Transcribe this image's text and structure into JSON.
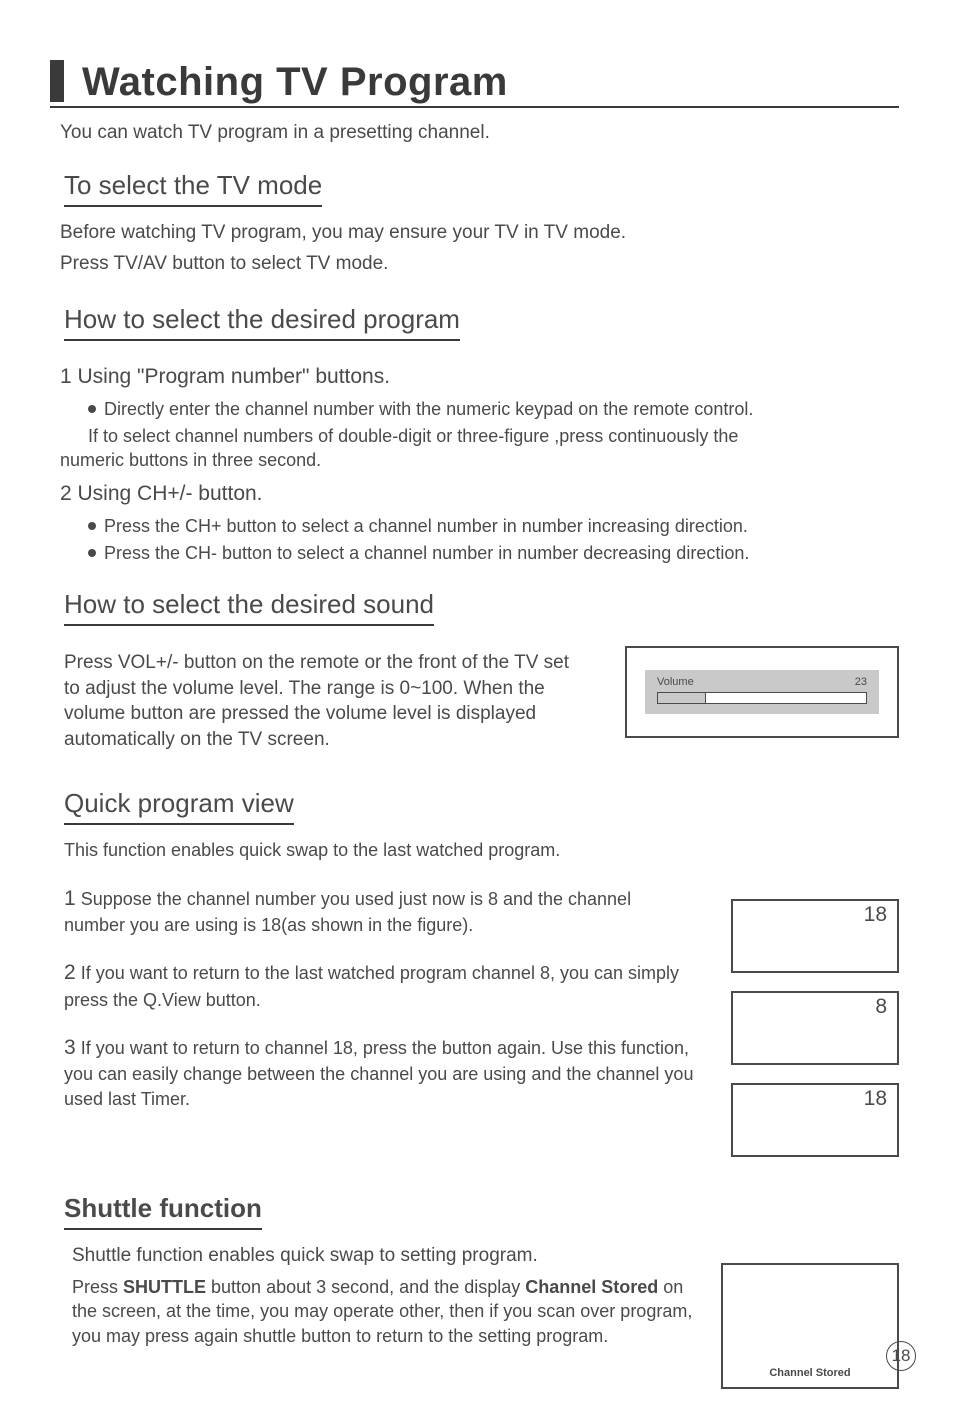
{
  "page": {
    "title": "Watching TV Program",
    "intro": "You can watch TV program in a  presetting channel.",
    "number": "18"
  },
  "mode": {
    "heading": "To select the TV mode",
    "p1": "Before watching TV program, you may ensure your TV in TV mode.",
    "p2": "Press TV/AV button to select TV mode."
  },
  "program": {
    "heading": "How to select the desired program",
    "step1_title": "1 Using \"Program number\" buttons.",
    "step1_b1": "Directly enter the channel number with the numeric keypad on the remote control.",
    "step1_note_a": "If to select channel numbers of double-digit or three-figure ,press continuously the",
    "step1_note_b": "numeric buttons in three second.",
    "step2_title": "2 Using CH+/- button.",
    "step2_b1": "Press the CH+ button to select a channel number in number increasing direction.",
    "step2_b2": "Press the CH- button to select a channel number in number decreasing direction."
  },
  "sound": {
    "heading": "How to select the desired sound",
    "body": "Press VOL+/- button on the remote or the front of the TV set to adjust the volume level. The range is 0~100. When the volume button are pressed the volume level is displayed automatically on the TV screen.",
    "fig": {
      "label": "Volume",
      "value": "23",
      "fill_percent": 23,
      "border_color": "#4a4a4a",
      "band_bg": "#c9c9c9",
      "bar_bg": "#ffffff"
    }
  },
  "quickview": {
    "heading": "Quick program view",
    "intro": "This function enables quick swap to the last watched program.",
    "s1_num": "1",
    "s1_text": " Suppose the channel number you used just now is 8 and the channel number you are using is 18(as shown in the figure).",
    "s2_num": "2",
    "s2_text": " If you want to return to the last watched program channel 8, you can simply press the Q.View button.",
    "s3_num": "3",
    "s3_text": " If you want to return to channel 18, press the button again. Use this function, you can easily change between the channel you are using and the channel you used last Timer.",
    "figs": {
      "ch1": "18",
      "ch2": "8",
      "ch3": "18"
    }
  },
  "shuttle": {
    "heading": "Shuttle function",
    "intro": "Shuttle function enables quick swap to setting program.",
    "body_a": "Press ",
    "body_b": "SHUTTLE",
    "body_c": " button about 3 second, and  the display ",
    "body_d": "Channel Stored",
    "body_e": " on the screen, at the time, you may operate other, then if you scan over program, you may press again shuttle button to return to the setting program.",
    "fig_label": "Channel Stored"
  },
  "colors": {
    "text": "#4a4a4a",
    "rule": "#3a3a3a",
    "bg": "#ffffff"
  }
}
